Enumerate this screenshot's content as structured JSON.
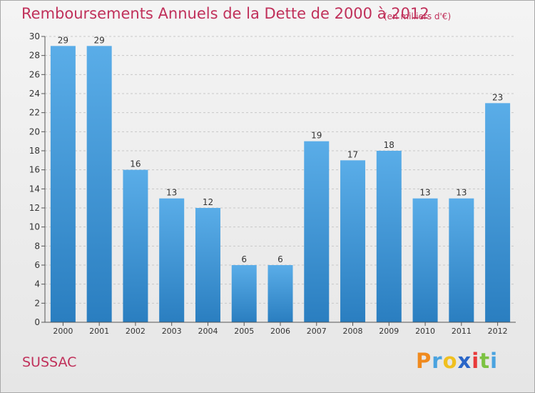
{
  "title": "Remboursements Annuels de la Dette de 2000 à 2012",
  "subtitle": "(en milliers d'€)",
  "town": "SUSSAC",
  "brand": {
    "letters": [
      "P",
      "r",
      "o",
      "x",
      "i",
      "t",
      "i"
    ],
    "colors": [
      "#f08a1e",
      "#4aa3df",
      "#f0c020",
      "#2a66c8",
      "#e83a3a",
      "#7cc242",
      "#4aa3df"
    ]
  },
  "colors": {
    "bar_light": "#5aade8",
    "bar_dark": "#2a7ec0",
    "axis": "#555555",
    "grid": "#c8c8c8",
    "label": "#333333"
  },
  "chart_data": {
    "type": "bar",
    "categories": [
      "2000",
      "2001",
      "2002",
      "2003",
      "2004",
      "2005",
      "2006",
      "2007",
      "2008",
      "2009",
      "2010",
      "2011",
      "2012"
    ],
    "values": [
      29,
      29,
      16,
      13,
      12,
      6,
      6,
      19,
      17,
      18,
      13,
      13,
      23
    ],
    "title": "Remboursements Annuels de la Dette de 2000 à 2012",
    "xlabel": "",
    "ylabel": "",
    "ylim": [
      0,
      30
    ],
    "yticks": [
      0,
      2,
      4,
      6,
      8,
      10,
      12,
      14,
      16,
      18,
      20,
      22,
      24,
      26,
      28,
      30
    ],
    "grid": true,
    "data_labels": true
  }
}
